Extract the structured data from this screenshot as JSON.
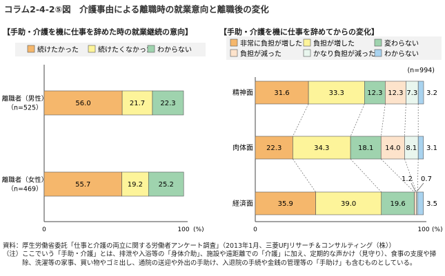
{
  "figure_title": "コラム2-4-2⑤図　介護事由による離職時の就業意向と離職後の変化",
  "source_note": {
    "label": "資料：",
    "text": "厚生労働省委託「仕事と介護の両立に関する労働者アンケート調査」（2013年1月、三菱UFJリサーチ＆コンサルティング（株））"
  },
  "explanatory_note": {
    "label": "（注）",
    "text": "ここでいう「手助・介護」とは、排泄や入浴等の「身体介助」、施設や遠距離での「介護」に加え、定期的な声かけ（見守り）、食事の支度や掃除、洗濯等の家事、買い物やゴミ出し、通院の送迎や外出の手助け、入退院の手続や金銭の管理等の「手助け」も含むものとしている。"
  },
  "colors": {
    "orange": "#f5b76c",
    "yellow": "#fdf49a",
    "green": "#9fd3ae",
    "peach": "#fde3cb",
    "pale_green": "#e9f6ee",
    "blue": "#a9d3ef",
    "panel_bg": "#f2f2f2",
    "bar_stroke": "#555555"
  },
  "chart_data": [
    {
      "type": "bar",
      "orientation": "horizontal",
      "stacked": true,
      "title": "【手助・介護を機に仕事を辞めた時の就業継続の意向】",
      "categories": [
        "離職者（男性）\n（n=525）",
        "離職者（女性）\n（n=469）"
      ],
      "series": [
        {
          "name": "続けたかった",
          "color": "#f5b76c",
          "values": [
            56.0,
            55.7
          ]
        },
        {
          "name": "続けたくなかった",
          "color": "#fdf49a",
          "values": [
            21.7,
            19.2
          ]
        },
        {
          "name": "わからない",
          "color": "#9fd3ae",
          "values": [
            22.3,
            25.2
          ]
        }
      ],
      "xlim": [
        0,
        100
      ],
      "x_ticks": [
        "0",
        "100"
      ],
      "x_unit": "(%)",
      "legend_position": "top",
      "legend_background": true
    },
    {
      "type": "bar",
      "orientation": "horizontal",
      "stacked": true,
      "title": "【手助・介護を機に仕事を辞めてからの変化】",
      "n_label": "(n=994)",
      "categories": [
        "精神面",
        "肉体面",
        "経済面"
      ],
      "series": [
        {
          "name": "非常に負担が増した",
          "color": "#f5b76c",
          "values": [
            31.6,
            22.3,
            35.9
          ]
        },
        {
          "name": "負担が増した",
          "color": "#fdf49a",
          "values": [
            33.3,
            34.3,
            39.0
          ]
        },
        {
          "name": "変わらない",
          "color": "#9fd3ae",
          "values": [
            12.3,
            18.1,
            19.6
          ]
        },
        {
          "name": "負担が減った",
          "color": "#fde3cb",
          "values": [
            12.3,
            14.0,
            1.2
          ]
        },
        {
          "name": "かなり負担が減った",
          "color": "#e9f6ee",
          "values": [
            7.3,
            8.1,
            0.7
          ]
        },
        {
          "name": "わからない",
          "color": "#a9d3ef",
          "values": [
            3.2,
            3.1,
            3.5
          ]
        }
      ],
      "xlim": [
        0,
        100
      ],
      "x_ticks": [
        "0",
        "100"
      ],
      "x_unit": "(%)",
      "legend_position": "top",
      "legend_background": true,
      "connector_lines": true
    }
  ]
}
